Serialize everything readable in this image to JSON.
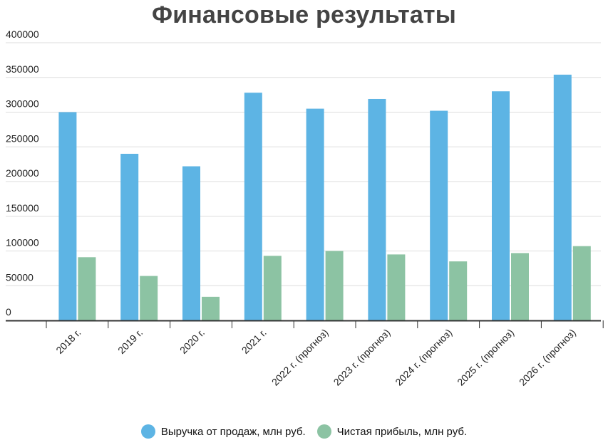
{
  "chart_data": {
    "type": "bar",
    "title": "Финансовые результаты",
    "xlabel": "",
    "ylabel": "",
    "ylim": [
      0,
      400000
    ],
    "yticks": [
      0,
      50000,
      100000,
      150000,
      200000,
      250000,
      300000,
      350000,
      400000
    ],
    "categories": [
      "2018 г.",
      "2019 г.",
      "2020 г.",
      "2021 г.",
      "2022 г. (прогноз)",
      "2023 г. (прогноз)",
      "2024 г. (прогноз)",
      "2025 г. (прогноз)",
      "2026 г. (прогноз)"
    ],
    "series": [
      {
        "name": "Выручка от продаж, млн руб.",
        "color": "#5db4e4",
        "values": [
          300000,
          240000,
          222000,
          328000,
          305000,
          319000,
          302000,
          330000,
          354000
        ]
      },
      {
        "name": "Чистая прибыль, млн руб.",
        "color": "#8cc3a3",
        "values": [
          91000,
          64000,
          34000,
          93000,
          100000,
          95000,
          85000,
          97000,
          107000
        ]
      }
    ],
    "grid": true,
    "legend": "bottom"
  }
}
